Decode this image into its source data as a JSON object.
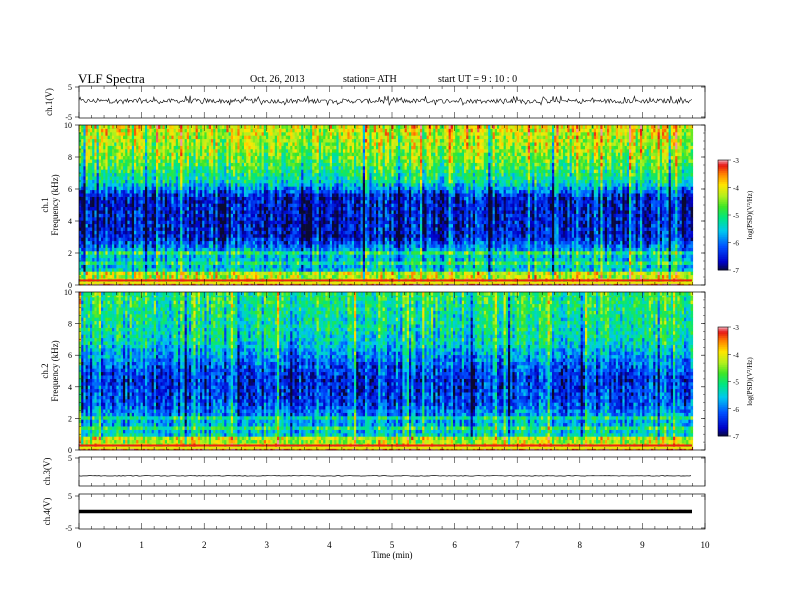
{
  "header": {
    "title": "VLF Spectra",
    "date": "Oct. 26, 2013",
    "station": "station= ATH",
    "start": "start UT = 9 : 10 : 0"
  },
  "chart_data": [
    {
      "type": "line",
      "title": "",
      "xlabel": "",
      "ylabel": "ch.1(V)",
      "ylim": [
        -5,
        5
      ],
      "yticks": [
        "5",
        "-5"
      ],
      "xlim": [
        0,
        10
      ],
      "series": [
        {
          "description": "noisy waveform around +0.3 V, spikes to about +2 and -1 V",
          "mean": 0.3,
          "min": -1.0,
          "max": 2.0
        }
      ]
    },
    {
      "type": "heatmap",
      "ylabel_top": "ch.1",
      "ylabel": "Frequency (kHz)",
      "xlim": [
        0,
        9.8
      ],
      "ylim": [
        0,
        10
      ],
      "yticks": [
        "10",
        "8",
        "6",
        "4",
        "2",
        "0"
      ],
      "colorbar": {
        "label": "log(PSD)(V²/Hz)",
        "range": [
          -7,
          -3
        ],
        "ticks": [
          "-3",
          "-4",
          "-5",
          "-6",
          "-7"
        ]
      },
      "profile_kHz_logpsd": [
        [
          0.0,
          -4.0
        ],
        [
          0.5,
          -4.2
        ],
        [
          1.0,
          -5.6
        ],
        [
          2.0,
          -5.6
        ],
        [
          3.0,
          -6.6
        ],
        [
          5.5,
          -6.6
        ],
        [
          6.5,
          -5.3
        ],
        [
          8.0,
          -4.6
        ],
        [
          10.0,
          -4.1
        ]
      ]
    },
    {
      "type": "heatmap",
      "ylabel_top": "ch.2",
      "ylabel": "Frequency (kHz)",
      "xlim": [
        0,
        9.8
      ],
      "ylim": [
        0,
        10
      ],
      "yticks": [
        "10",
        "8",
        "6",
        "4",
        "2",
        "0"
      ],
      "colorbar": {
        "label": "log(PSD)(V²/Hz)",
        "range": [
          -7,
          -3
        ],
        "ticks": [
          "-3",
          "-4",
          "-5",
          "-6",
          "-7"
        ]
      },
      "profile_kHz_logpsd": [
        [
          0.0,
          -4.0
        ],
        [
          0.5,
          -4.3
        ],
        [
          1.0,
          -5.5
        ],
        [
          2.0,
          -5.8
        ],
        [
          3.0,
          -6.3
        ],
        [
          4.5,
          -6.5
        ],
        [
          5.5,
          -6.1
        ],
        [
          7.0,
          -5.4
        ],
        [
          10.0,
          -5.0
        ]
      ]
    },
    {
      "type": "line",
      "ylabel": "ch.3(V)",
      "ylim": [
        -5,
        5
      ],
      "yticks": [
        "5"
      ],
      "xlim": [
        0,
        10
      ],
      "series": [
        {
          "description": "flat near -1.5 V",
          "mean": -1.5
        }
      ]
    },
    {
      "type": "line",
      "ylabel": "ch.4(V)",
      "ylim": [
        -5,
        5
      ],
      "yticks": [
        "5",
        "-5"
      ],
      "xlim": [
        0,
        10
      ],
      "series": [
        {
          "description": "thick flat line at about 0 V",
          "mean": 0
        }
      ]
    }
  ],
  "xaxis": {
    "label": "Time (min)",
    "ticks": [
      "0",
      "1",
      "2",
      "3",
      "4",
      "5",
      "6",
      "7",
      "8",
      "9",
      "10"
    ]
  },
  "colors": {
    "axis": "#000000",
    "trace": "#000000",
    "background": "#ffffff"
  }
}
